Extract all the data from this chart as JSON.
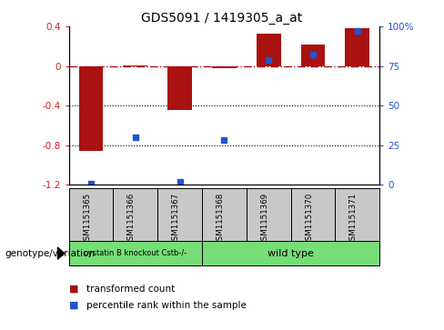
{
  "title": "GDS5091 / 1419305_a_at",
  "samples": [
    "GSM1151365",
    "GSM1151366",
    "GSM1151367",
    "GSM1151368",
    "GSM1151369",
    "GSM1151370",
    "GSM1151371"
  ],
  "red_bars": [
    -0.86,
    0.01,
    -0.44,
    -0.02,
    0.33,
    0.22,
    0.38
  ],
  "blue_dots_pct": [
    1,
    30,
    2,
    28,
    79,
    82,
    97
  ],
  "ylim_left": [
    -1.2,
    0.4
  ],
  "ylim_right": [
    0,
    100
  ],
  "yticks_left": [
    -1.2,
    -0.8,
    -0.4,
    0.0,
    0.4
  ],
  "yticks_right": [
    0,
    25,
    50,
    75,
    100
  ],
  "yticks_right_labels": [
    "0",
    "25",
    "50",
    "75",
    "100%"
  ],
  "hlines": [
    -0.4,
    -0.8
  ],
  "dashed_line_y": 0.0,
  "group1_samples": [
    0,
    1,
    2
  ],
  "group2_samples": [
    3,
    4,
    5,
    6
  ],
  "group1_label": "cystatin B knockout Cstb-/-",
  "group2_label": "wild type",
  "group_color": "#77dd77",
  "genotype_label": "genotype/variation",
  "legend_red": "transformed count",
  "legend_blue": "percentile rank within the sample",
  "bar_color": "#aa1111",
  "dot_color": "#2255cc",
  "bar_width": 0.55,
  "left_axis_color": "#cc2222",
  "right_axis_color": "#2255cc"
}
